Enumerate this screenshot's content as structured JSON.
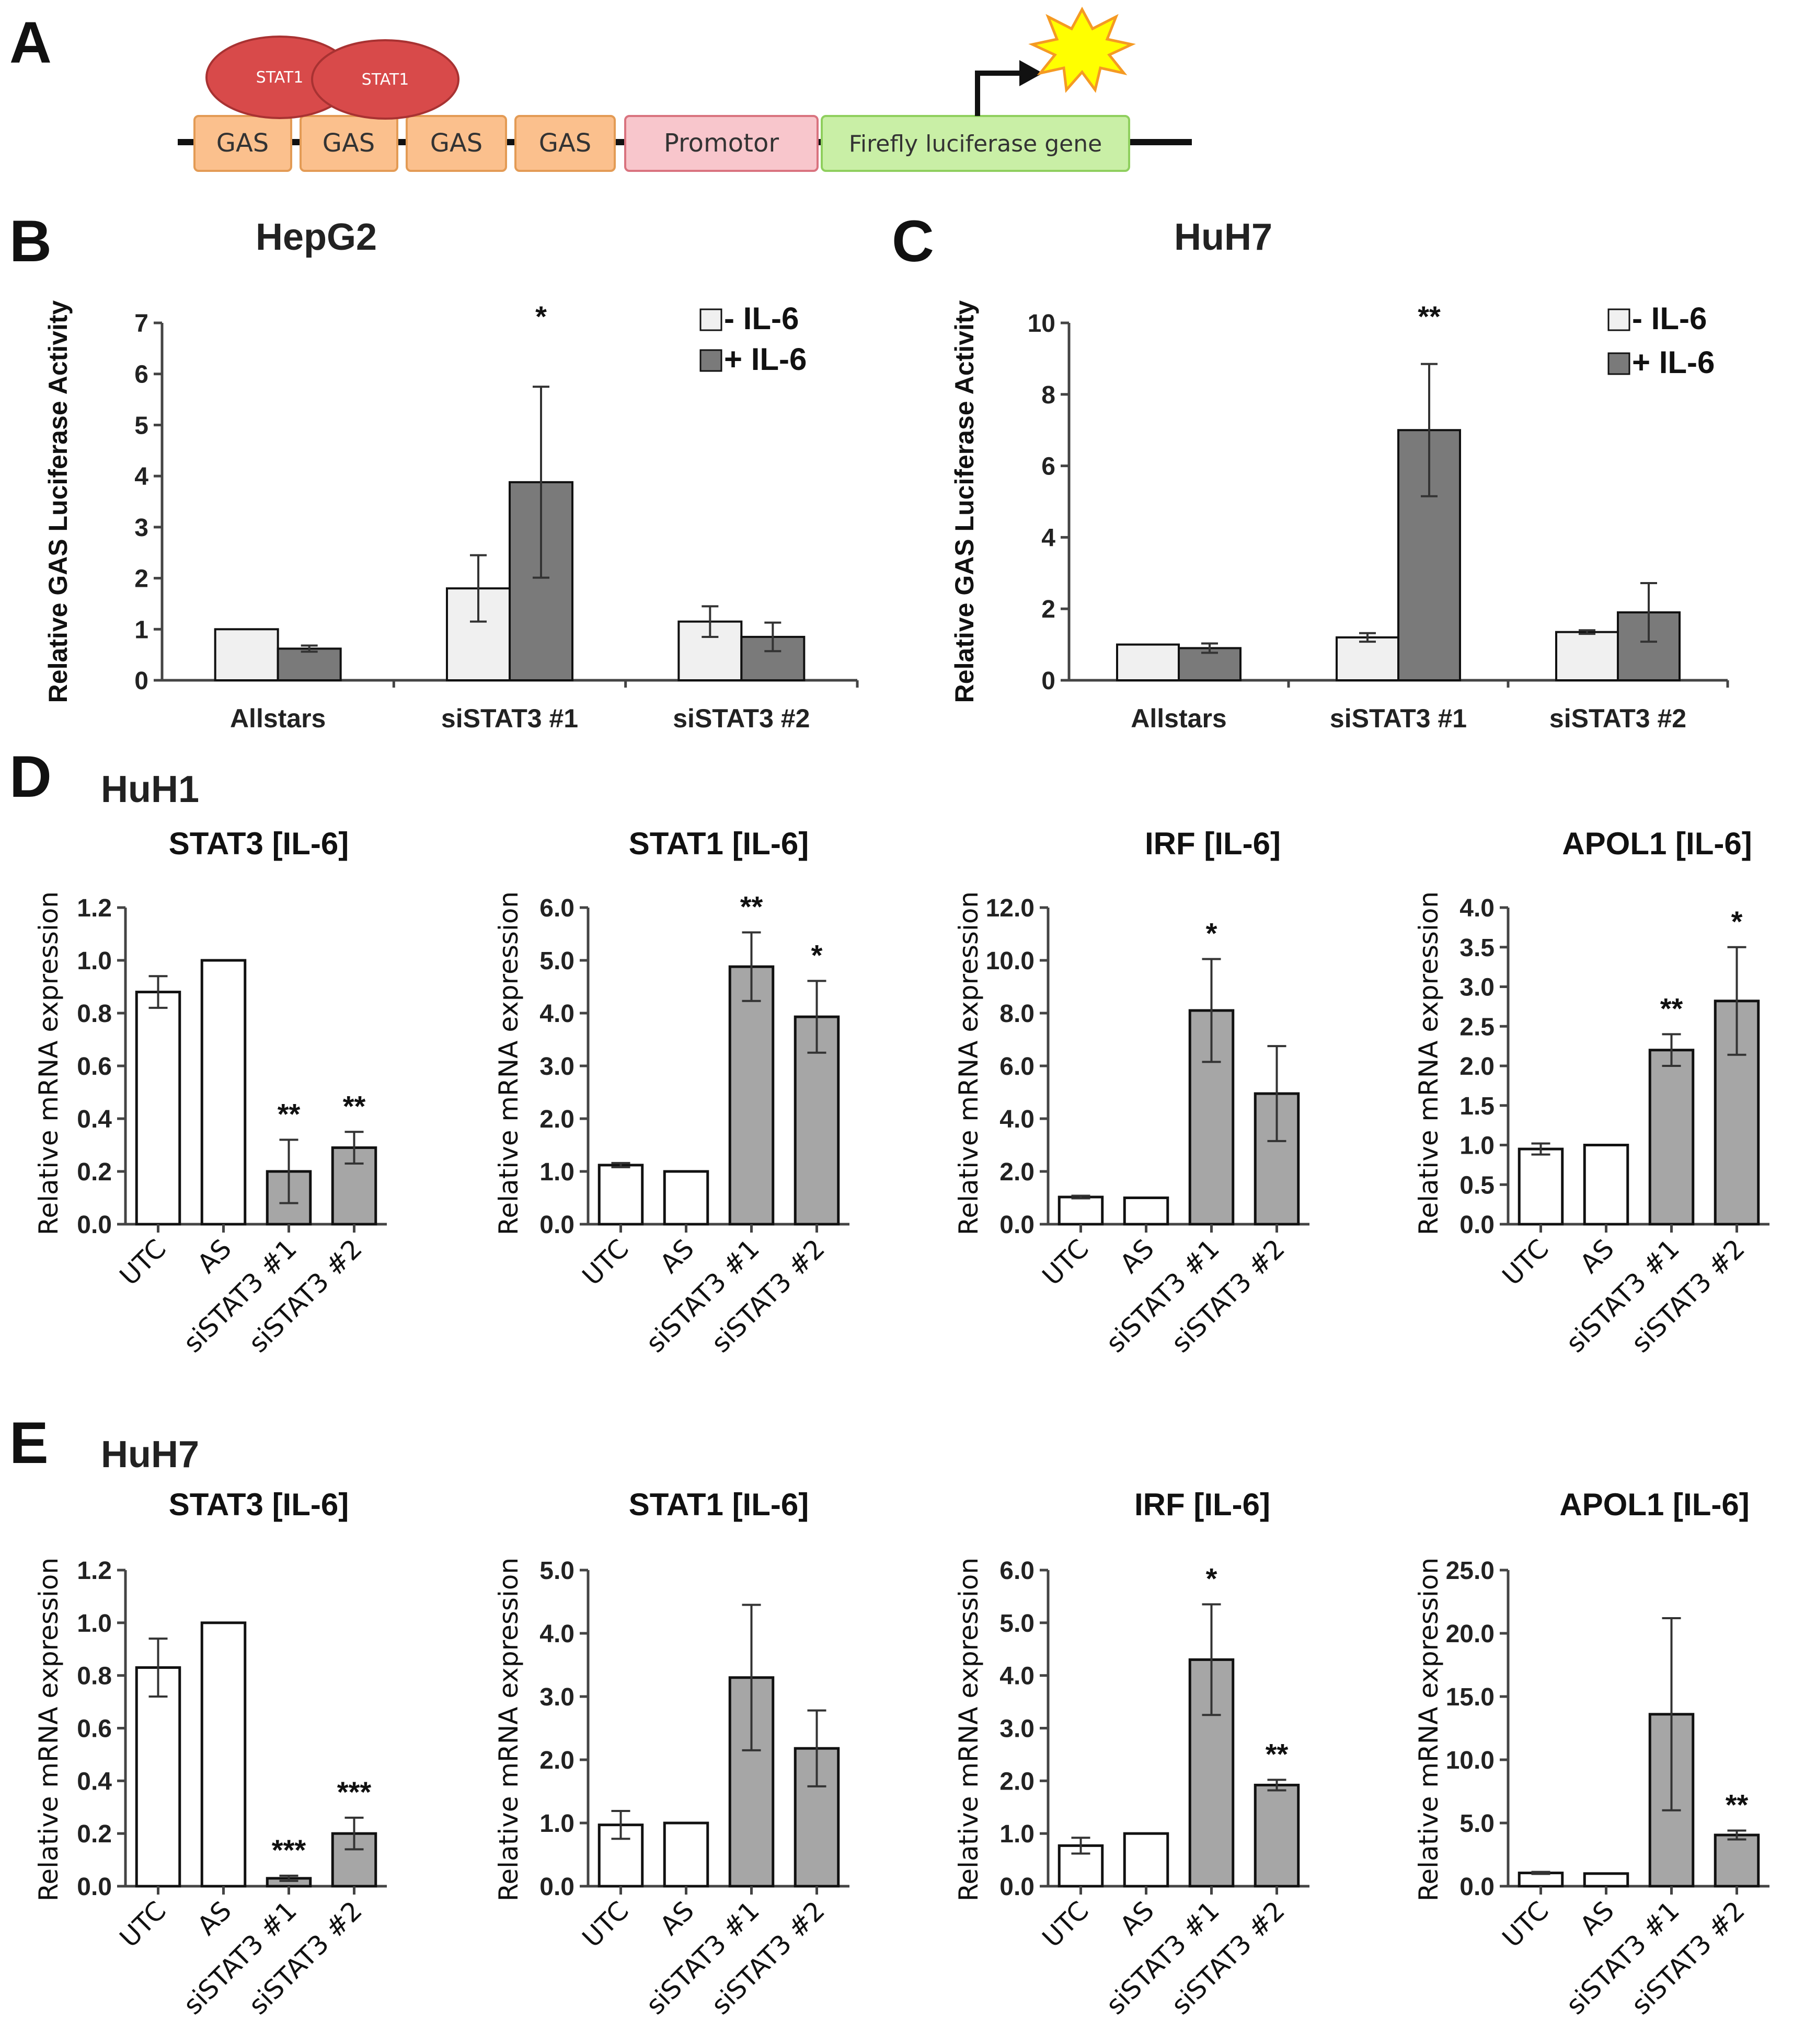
{
  "colors": {
    "bar_minus": "#f0f0f0",
    "bar_plus": "#7a7a7a",
    "bar_open": "#ffffff",
    "bar_gray": "#a6a6a6",
    "stat1": "#d84a4a",
    "gas": "#fbc08d",
    "promotor": "#f8c6cc",
    "luciferase": "#c9efa6",
    "star": "#ffff00"
  },
  "panel_a": {
    "letter": "A",
    "stat1_labels": [
      "STAT1",
      "STAT1"
    ],
    "boxes": [
      "GAS",
      "GAS",
      "GAS",
      "GAS",
      "Promotor",
      "Firefly luciferase gene"
    ],
    "icon": "light-burst-icon"
  },
  "panels": {
    "b": {
      "letter": "B",
      "cell_line": "HepG2"
    },
    "c": {
      "letter": "C",
      "cell_line": "HuH7"
    },
    "d": {
      "letter": "D",
      "cell_line": "HuH1"
    },
    "e": {
      "letter": "E",
      "cell_line": "HuH7"
    }
  },
  "chart_data": [
    {
      "id": "B",
      "type": "bar",
      "title": "HepG2",
      "ylabel": "Relative GAS Luciferase Activity",
      "categories": [
        "Allstars",
        "siSTAT3 #1",
        "siSTAT3 #2"
      ],
      "ylim": [
        0,
        7
      ],
      "yticks": [
        "0",
        "1",
        "2",
        "3",
        "4",
        "5",
        "6",
        "7"
      ],
      "series": [
        {
          "name": "- IL-6",
          "values": [
            1.0,
            1.8,
            1.15
          ],
          "errors": [
            0,
            0.65,
            0.3
          ]
        },
        {
          "name": "+ IL-6",
          "values": [
            0.62,
            3.88,
            0.85
          ],
          "errors": [
            0.06,
            1.87,
            0.28
          ]
        }
      ],
      "annotations": [
        {
          "category": "siSTAT3 #1",
          "text": "*"
        }
      ]
    },
    {
      "id": "C",
      "type": "bar",
      "title": "HuH7",
      "ylabel": "Relative GAS Luciferase Activity",
      "categories": [
        "Allstars",
        "siSTAT3 #1",
        "siSTAT3 #2"
      ],
      "ylim": [
        0,
        10
      ],
      "yticks": [
        "0",
        "2",
        "4",
        "6",
        "8",
        "10"
      ],
      "series": [
        {
          "name": "- IL-6",
          "values": [
            1.0,
            1.2,
            1.35
          ],
          "errors": [
            0,
            0.12,
            0.05
          ]
        },
        {
          "name": "+ IL-6",
          "values": [
            0.9,
            7.0,
            1.9
          ],
          "errors": [
            0.13,
            1.85,
            0.82
          ]
        }
      ],
      "annotations": [
        {
          "category": "siSTAT3 #1",
          "text": "**"
        }
      ]
    },
    {
      "id": "D1",
      "type": "bar",
      "title": "STAT3 [IL-6]",
      "ylabel": "Relative mRNA expression",
      "categories": [
        "UTC",
        "AS",
        "siSTAT3 #1",
        "siSTAT3 #2"
      ],
      "ylim": [
        0,
        1.2
      ],
      "yticks": [
        "0.0",
        "0.2",
        "0.4",
        "0.6",
        "0.8",
        "1.0",
        "1.2"
      ],
      "values": [
        0.88,
        1.0,
        0.2,
        0.29
      ],
      "errors": [
        0.06,
        0,
        0.12,
        0.06
      ],
      "annotations": [
        "",
        "",
        "**",
        "**"
      ]
    },
    {
      "id": "D2",
      "type": "bar",
      "title": "STAT1 [IL-6]",
      "ylabel": "Relative mRNA expression",
      "categories": [
        "UTC",
        "AS",
        "siSTAT3 #1",
        "siSTAT3 #2"
      ],
      "ylim": [
        0,
        6
      ],
      "yticks": [
        "0.0",
        "1.0",
        "2.0",
        "3.0",
        "4.0",
        "5.0",
        "6.0"
      ],
      "values": [
        1.12,
        1.0,
        4.88,
        3.93
      ],
      "errors": [
        0.04,
        0,
        0.65,
        0.68
      ],
      "annotations": [
        "",
        "",
        "**",
        "*"
      ]
    },
    {
      "id": "D3",
      "type": "bar",
      "title": "IRF [IL-6]",
      "ylabel": "Relative mRNA expression",
      "categories": [
        "UTC",
        "AS",
        "siSTAT3 #1",
        "siSTAT3 #2"
      ],
      "ylim": [
        0,
        12
      ],
      "yticks": [
        "0.0",
        "2.0",
        "4.0",
        "6.0",
        "8.0",
        "10.0",
        "12.0"
      ],
      "values": [
        1.03,
        1.0,
        8.1,
        4.95
      ],
      "errors": [
        0.05,
        0,
        1.95,
        1.8
      ],
      "annotations": [
        "",
        "",
        "*",
        ""
      ]
    },
    {
      "id": "D4",
      "type": "bar",
      "title": "APOL1 [IL-6]",
      "ylabel": "Relative mRNA expression",
      "categories": [
        "UTC",
        "AS",
        "siSTAT3 #1",
        "siSTAT3 #2"
      ],
      "ylim": [
        0,
        4
      ],
      "yticks": [
        "0.0",
        "0.5",
        "1.0",
        "1.5",
        "2.0",
        "2.5",
        "3.0",
        "3.5",
        "4.0"
      ],
      "values": [
        0.95,
        1.0,
        2.2,
        2.82
      ],
      "errors": [
        0.07,
        0,
        0.2,
        0.68
      ],
      "annotations": [
        "",
        "",
        "**",
        "*"
      ]
    },
    {
      "id": "E1",
      "type": "bar",
      "title": "STAT3 [IL-6]",
      "ylabel": "Relative mRNA expression",
      "categories": [
        "UTC",
        "AS",
        "siSTAT3 #1",
        "siSTAT3 #2"
      ],
      "ylim": [
        0,
        1.2
      ],
      "yticks": [
        "0.0",
        "0.2",
        "0.4",
        "0.6",
        "0.8",
        "1.0",
        "1.2"
      ],
      "values": [
        0.83,
        1.0,
        0.03,
        0.2
      ],
      "errors": [
        0.11,
        0,
        0.01,
        0.06
      ],
      "annotations": [
        "",
        "",
        "***",
        "***"
      ]
    },
    {
      "id": "E2",
      "type": "bar",
      "title": "STAT1 [IL-6]",
      "ylabel": "Relative mRNA expression",
      "categories": [
        "UTC",
        "AS",
        "siSTAT3 #1",
        "siSTAT3 #2"
      ],
      "ylim": [
        0,
        5
      ],
      "yticks": [
        "0.0",
        "1.0",
        "2.0",
        "3.0",
        "4.0",
        "5.0"
      ],
      "values": [
        0.97,
        1.0,
        3.3,
        2.18
      ],
      "errors": [
        0.22,
        0,
        1.15,
        0.6
      ],
      "annotations": [
        "",
        "",
        "",
        ""
      ]
    },
    {
      "id": "E3",
      "type": "bar",
      "title": "IRF [IL-6]",
      "ylabel": "Relative mRNA expression",
      "categories": [
        "UTC",
        "AS",
        "siSTAT3 #1",
        "siSTAT3 #2"
      ],
      "ylim": [
        0,
        6
      ],
      "yticks": [
        "0.0",
        "1.0",
        "2.0",
        "3.0",
        "4.0",
        "5.0",
        "6.0"
      ],
      "values": [
        0.77,
        1.0,
        4.3,
        1.92
      ],
      "errors": [
        0.15,
        0,
        1.05,
        0.1
      ],
      "annotations": [
        "",
        "",
        "*",
        "**"
      ]
    },
    {
      "id": "E4",
      "type": "bar",
      "title": "APOL1 [IL-6]",
      "ylabel": "Relative mRNA expression",
      "categories": [
        "UTC",
        "AS",
        "siSTAT3 #1",
        "siSTAT3 #2"
      ],
      "ylim": [
        0,
        25
      ],
      "yticks": [
        "0.0",
        "5.0",
        "10.0",
        "15.0",
        "20.0",
        "25.0"
      ],
      "values": [
        1.05,
        1.0,
        13.6,
        4.05
      ],
      "errors": [
        0.08,
        0,
        7.6,
        0.35
      ],
      "annotations": [
        "",
        "",
        "",
        "**"
      ]
    }
  ]
}
